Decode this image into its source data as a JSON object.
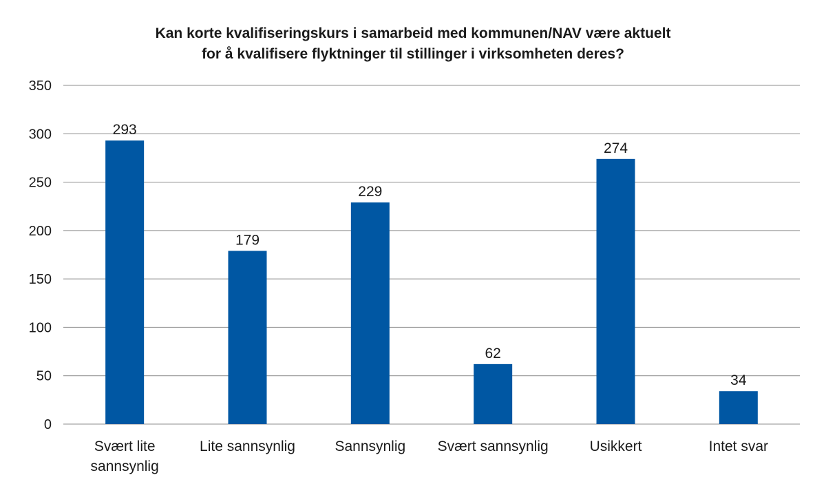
{
  "chart_data": {
    "type": "bar",
    "title": [
      "Kan korte kvalifiseringskurs i samarbeid med kommunen/NAV være aktuelt",
      "for å kvalifisere flyktninger til stillinger i virksomheten deres?"
    ],
    "categories": [
      [
        "Svært lite",
        "sannsynlig"
      ],
      [
        "Lite sannsynlig"
      ],
      [
        "Sannsynlig"
      ],
      [
        "Svært sannsynlig"
      ],
      [
        "Usikkert"
      ],
      [
        "Intet svar"
      ]
    ],
    "values": [
      293,
      179,
      229,
      62,
      274,
      34
    ],
    "xlabel": "",
    "ylabel": "",
    "ylim": [
      0,
      350
    ],
    "yticks": [
      0,
      50,
      100,
      150,
      200,
      250,
      300,
      350
    ],
    "grid": true,
    "data_labels": true,
    "bar_color": "#0057a3",
    "grid_color": "#8c8c8c"
  }
}
